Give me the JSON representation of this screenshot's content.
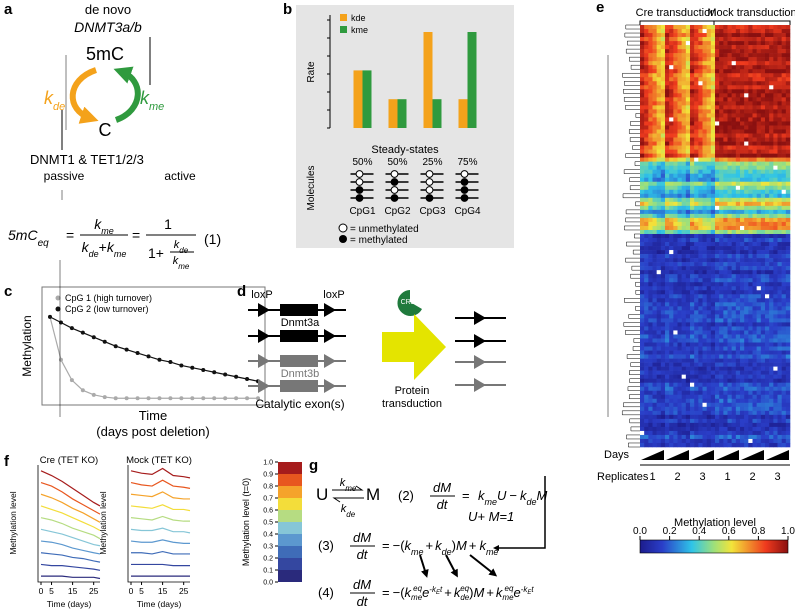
{
  "panel_a": {
    "label": "a",
    "de_novo": "de novo",
    "dnmt3": "DNMT3a/b",
    "mc": "5mC",
    "c": "C",
    "k": "k",
    "de": "de",
    "me": "me",
    "enzymes": "DNMT1 & TET1/2/3",
    "passive": "passive",
    "active": "active",
    "eq_sub": "eq",
    "equals": "=",
    "plus": "+",
    "one": "1",
    "eq_number": "(1)"
  },
  "panel_b": {
    "label": "b",
    "y_label": "Rate",
    "ylim": [
      0,
      1
    ],
    "categories": [
      "CpG1",
      "CpG2",
      "CpG3",
      "CpG4"
    ],
    "series": [
      {
        "name": "kde",
        "color": "#f4a21b",
        "values": [
          0.6,
          0.3,
          1.0,
          0.3
        ]
      },
      {
        "name": "kme",
        "color": "#2f9a3e",
        "values": [
          0.6,
          0.3,
          0.3,
          1.0
        ]
      }
    ],
    "steady_states_label": "Steady-states",
    "steady_states": [
      "50%",
      "50%",
      "25%",
      "75%"
    ],
    "molecules_label": "Molecules",
    "legend_unmethylated": "= unmethylated",
    "legend_methylated": "= methylated"
  },
  "panel_c": {
    "label": "c",
    "ylim": [
      0,
      1
    ],
    "y_label": "Methylation",
    "x_label": "Time",
    "x_sublabel": "(days post deletion)",
    "series": [
      {
        "name": "CpG 1 (high turnover)",
        "color": "#aaaaaa",
        "values": [
          0.78,
          0.4,
          0.22,
          0.13,
          0.09,
          0.07,
          0.06,
          0.06,
          0.06,
          0.06,
          0.06,
          0.06,
          0.06,
          0.06,
          0.06,
          0.06,
          0.06,
          0.06,
          0.06,
          0.06
        ]
      },
      {
        "name": "CpG 2 (low turnover)",
        "color": "#111111",
        "values": [
          0.78,
          0.73,
          0.68,
          0.64,
          0.6,
          0.56,
          0.52,
          0.49,
          0.46,
          0.43,
          0.4,
          0.38,
          0.35,
          0.33,
          0.31,
          0.29,
          0.27,
          0.25,
          0.23,
          0.21
        ]
      }
    ]
  },
  "panel_d": {
    "label": "d",
    "loxp": "loxP",
    "dnmt3a": "Dnmt3a",
    "dnmt3b": "Dnmt3b",
    "exons": "Catalytic exon(s)",
    "cre": "CRE",
    "protein": "Protein",
    "transduction": "transduction"
  },
  "panel_e": {
    "label": "e",
    "cre_header": "Cre transduction",
    "mock_header": "Mock transduction",
    "days": "Days",
    "replicates": "Replicates",
    "replicate_numbers": [
      "1",
      "2",
      "3",
      "1",
      "2",
      "3"
    ],
    "colorbar_label": "Methylation level",
    "colorbar_lim": [
      0,
      1
    ],
    "colorbar_ticks": [
      {
        "value": 0,
        "label": "0.0"
      },
      0.2,
      0.4,
      0.6,
      0.8,
      {
        "value": 1,
        "label": "1.0"
      }
    ]
  },
  "panel_f": {
    "label": "f",
    "y_label": "Methylation level",
    "x_label": "Time (days)",
    "colorbar_label": "Methylation level (t=0)",
    "colorbar_lim": [
      0,
      1
    ],
    "colorbar_ticks": [
      {
        "value": 1,
        "label": "1.0"
      },
      0.9,
      0.8,
      0.7,
      0.6,
      0.5,
      0.4,
      0.3,
      0.2,
      0.1,
      {
        "value": 0,
        "label": "0.0"
      }
    ],
    "colorbar_colors": [
      "#2a2a7c",
      "#3447a0",
      "#3f6cb8",
      "#5c98cf",
      "#86c6d7",
      "#b6dc82",
      "#f3dd3a",
      "#f5a32b",
      "#e8571f",
      "#a61c1c"
    ],
    "plots": [
      {
        "title": "Cre (TET KO)",
        "x": [
          0,
          5,
          10,
          15,
          20,
          25,
          28
        ],
        "xlim": [
          0,
          28
        ],
        "xticks": [
          0,
          5,
          15,
          25
        ],
        "ylim": [
          0,
          1
        ],
        "series": [
          {
            "color": "#a61c1c",
            "values": [
              0.95,
              0.91,
              0.86,
              0.8,
              0.74,
              0.68,
              0.65
            ]
          },
          {
            "color": "#e8571f",
            "values": [
              0.85,
              0.82,
              0.77,
              0.71,
              0.66,
              0.61,
              0.58
            ]
          },
          {
            "color": "#f5a32b",
            "values": [
              0.75,
              0.72,
              0.68,
              0.63,
              0.59,
              0.54,
              0.51
            ]
          },
          {
            "color": "#f3dd3a",
            "values": [
              0.65,
              0.62,
              0.59,
              0.55,
              0.51,
              0.47,
              0.44
            ]
          },
          {
            "color": "#b6dc82",
            "values": [
              0.55,
              0.53,
              0.5,
              0.46,
              0.43,
              0.4,
              0.37
            ]
          },
          {
            "color": "#86c6d7",
            "values": [
              0.45,
              0.43,
              0.41,
              0.38,
              0.35,
              0.32,
              0.31
            ]
          },
          {
            "color": "#5c98cf",
            "values": [
              0.35,
              0.34,
              0.32,
              0.29,
              0.27,
              0.25,
              0.24
            ]
          },
          {
            "color": "#3f6cb8",
            "values": [
              0.25,
              0.24,
              0.23,
              0.21,
              0.2,
              0.18,
              0.17
            ]
          },
          {
            "color": "#3447a0",
            "values": [
              0.15,
              0.14,
              0.14,
              0.13,
              0.12,
              0.11,
              0.1
            ]
          },
          {
            "color": "#2a2a7c",
            "values": [
              0.05,
              0.05,
              0.05,
              0.04,
              0.04,
              0.04,
              0.03
            ]
          }
        ]
      },
      {
        "title": "Mock (TET KO)",
        "x": [
          0,
          5,
          10,
          15,
          20,
          25,
          28
        ],
        "xlim": [
          0,
          28
        ],
        "xticks": [
          0,
          5,
          15,
          25
        ],
        "ylim": [
          0,
          1
        ],
        "series": [
          {
            "color": "#a61c1c",
            "values": [
              0.95,
              0.93,
              0.92,
              0.97,
              0.91,
              0.9,
              0.89
            ]
          },
          {
            "color": "#e8571f",
            "values": [
              0.85,
              0.83,
              0.82,
              0.87,
              0.82,
              0.81,
              0.8
            ]
          },
          {
            "color": "#f5a32b",
            "values": [
              0.75,
              0.74,
              0.73,
              0.77,
              0.72,
              0.71,
              0.71
            ]
          },
          {
            "color": "#f3dd3a",
            "values": [
              0.65,
              0.64,
              0.63,
              0.66,
              0.62,
              0.62,
              0.61
            ]
          },
          {
            "color": "#b6dc82",
            "values": [
              0.55,
              0.54,
              0.53,
              0.56,
              0.53,
              0.52,
              0.52
            ]
          },
          {
            "color": "#86c6d7",
            "values": [
              0.45,
              0.44,
              0.44,
              0.46,
              0.43,
              0.43,
              0.42
            ]
          },
          {
            "color": "#5c98cf",
            "values": [
              0.35,
              0.34,
              0.34,
              0.36,
              0.34,
              0.33,
              0.33
            ]
          },
          {
            "color": "#3f6cb8",
            "values": [
              0.25,
              0.25,
              0.24,
              0.26,
              0.24,
              0.24,
              0.24
            ]
          },
          {
            "color": "#3447a0",
            "values": [
              0.15,
              0.15,
              0.15,
              0.15,
              0.14,
              0.14,
              0.14
            ]
          },
          {
            "color": "#2a2a7c",
            "values": [
              0.05,
              0.05,
              0.05,
              0.05,
              0.05,
              0.05,
              0.05
            ]
          }
        ]
      }
    ]
  },
  "panel_g": {
    "label": "g",
    "u": "U",
    "m": "M",
    "k": "k",
    "me": "me",
    "de": "de",
    "eq2": "(2)",
    "eq3": "(3)",
    "eq4": "(4)",
    "dm": "dM",
    "dt": "dt",
    "equals": "=",
    "minus": "−",
    "plus": "+",
    "open": "(",
    "close": ")",
    "u_plus_m": "U+ M=1",
    "eq_sup": "eq",
    "e": "e",
    "exp": "-k",
    "exp_sub": "E",
    "t": "t"
  }
}
